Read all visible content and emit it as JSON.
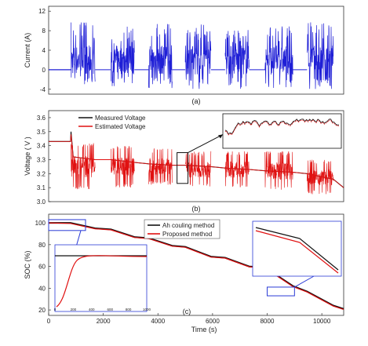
{
  "chart_data": [
    {
      "panel": "(a)",
      "type": "line",
      "title": "",
      "xlabel": "",
      "ylabel": "Current (A)",
      "xlim": [
        0,
        10800
      ],
      "ylim": [
        -5,
        13
      ],
      "y_ticks": [
        -4,
        0,
        4,
        8,
        12
      ],
      "grid": false,
      "series": [
        {
          "color": "#1f1fd6",
          "baseline_points": [
            [
              0,
              0
            ],
            [
              820,
              0
            ]
          ],
          "pulse_blocks": [
            {
              "x_start": 820,
              "x_end": 1700,
              "min": -3,
              "max": 10
            },
            {
              "x_start": 2280,
              "x_end": 3140,
              "min": -3.5,
              "max": 9
            },
            {
              "x_start": 3660,
              "x_end": 4520,
              "min": -4,
              "max": 10
            },
            {
              "x_start": 5000,
              "x_end": 5940,
              "min": -4,
              "max": 9.5
            },
            {
              "x_start": 6460,
              "x_end": 7340,
              "min": -4,
              "max": 8.5
            },
            {
              "x_start": 7920,
              "x_end": 8940,
              "min": -4,
              "max": 9
            },
            {
              "x_start": 9460,
              "x_end": 10420,
              "min": -4,
              "max": 10
            }
          ],
          "rest_value": 0
        }
      ]
    },
    {
      "panel": "(b)",
      "type": "line",
      "title": "",
      "xlabel": "",
      "ylabel": "Voltage ( V )",
      "xlim": [
        0,
        10800
      ],
      "ylim": [
        3.0,
        3.65
      ],
      "y_ticks": [
        3.0,
        3.1,
        3.2,
        3.3,
        3.4,
        3.5,
        3.6
      ],
      "grid": false,
      "legend_position": "top-left",
      "series": [
        {
          "name": "Measured Voltage",
          "color": "#111111",
          "points": [
            [
              0,
              3.43
            ],
            [
              800,
              3.43
            ],
            [
              820,
              3.5
            ],
            [
              900,
              3.32
            ],
            [
              1700,
              3.3
            ],
            [
              2280,
              3.3
            ],
            [
              3140,
              3.28
            ],
            [
              3660,
              3.27
            ],
            [
              4520,
              3.26
            ],
            [
              5000,
              3.26
            ],
            [
              5940,
              3.25
            ],
            [
              6460,
              3.24
            ],
            [
              7340,
              3.23
            ],
            [
              7920,
              3.22
            ],
            [
              8940,
              3.21
            ],
            [
              9460,
              3.2
            ],
            [
              10420,
              3.16
            ],
            [
              10800,
              3.1
            ]
          ]
        },
        {
          "name": "Estimated Voltage",
          "color": "#e01010",
          "points": [
            [
              0,
              3.43
            ],
            [
              800,
              3.43
            ],
            [
              820,
              3.48
            ],
            [
              900,
              3.32
            ],
            [
              1700,
              3.3
            ],
            [
              2280,
              3.3
            ],
            [
              3140,
              3.28
            ],
            [
              3660,
              3.27
            ],
            [
              4520,
              3.26
            ],
            [
              5000,
              3.26
            ],
            [
              5940,
              3.25
            ],
            [
              6460,
              3.24
            ],
            [
              7340,
              3.23
            ],
            [
              7920,
              3.22
            ],
            [
              8940,
              3.21
            ],
            [
              9460,
              3.2
            ],
            [
              10420,
              3.16
            ],
            [
              10800,
              3.1
            ]
          ],
          "pulse_blocks": [
            {
              "x_start": 820,
              "x_end": 1700,
              "min": 3.08,
              "max": 3.42
            },
            {
              "x_start": 2280,
              "x_end": 3140,
              "min": 3.1,
              "max": 3.4
            },
            {
              "x_start": 3660,
              "x_end": 4520,
              "min": 3.12,
              "max": 3.38
            },
            {
              "x_start": 5000,
              "x_end": 5940,
              "min": 3.1,
              "max": 3.36
            },
            {
              "x_start": 6460,
              "x_end": 7340,
              "min": 3.1,
              "max": 3.36
            },
            {
              "x_start": 7920,
              "x_end": 8940,
              "min": 3.08,
              "max": 3.36
            },
            {
              "x_start": 9460,
              "x_end": 10420,
              "min": 3.05,
              "max": 3.3
            }
          ]
        }
      ],
      "zoom_box": {
        "x_range": [
          4700,
          5100
        ],
        "y_range": [
          3.13,
          3.35
        ]
      }
    },
    {
      "panel": "(c)",
      "type": "line",
      "title": "",
      "xlabel": "Time (s)",
      "ylabel": "SOC (%)",
      "xlim": [
        0,
        10800
      ],
      "ylim": [
        15,
        108
      ],
      "x_ticks": [
        0,
        2000,
        4000,
        6000,
        8000,
        10000
      ],
      "y_ticks": [
        20,
        40,
        60,
        80,
        100
      ],
      "grid": false,
      "legend_position": "top-center",
      "series": [
        {
          "name": "Ah couling method",
          "color": "#111111",
          "x": [
            0,
            800,
            1700,
            2280,
            3140,
            3660,
            4520,
            5000,
            5940,
            6460,
            7340,
            7920,
            8940,
            9460,
            10420,
            10800
          ],
          "y": [
            100,
            100,
            95,
            94,
            87,
            86,
            79,
            78,
            69,
            68,
            60,
            59,
            42,
            37,
            24,
            21
          ]
        },
        {
          "name": "Proposed method",
          "color": "#e01010",
          "x": [
            0,
            800,
            1700,
            2280,
            3140,
            3660,
            4520,
            5000,
            5940,
            6460,
            7340,
            7920,
            8940,
            9460,
            10420,
            10800
          ],
          "y": [
            100,
            99.5,
            94.6,
            93.6,
            86.6,
            85.6,
            78.6,
            77.6,
            68.6,
            67.6,
            59.6,
            58.6,
            41.5,
            36.5,
            23.5,
            20.5
          ]
        }
      ],
      "zoom_boxes": [
        {
          "x_range": [
            0,
            1350
          ],
          "y_range": [
            93,
            103
          ]
        },
        {
          "x_range": [
            8000,
            9000
          ],
          "y_range": [
            33,
            41
          ]
        }
      ],
      "inset_left": {
        "x_ticks": [
          0,
          200,
          400,
          600,
          800,
          1000
        ]
      }
    }
  ]
}
